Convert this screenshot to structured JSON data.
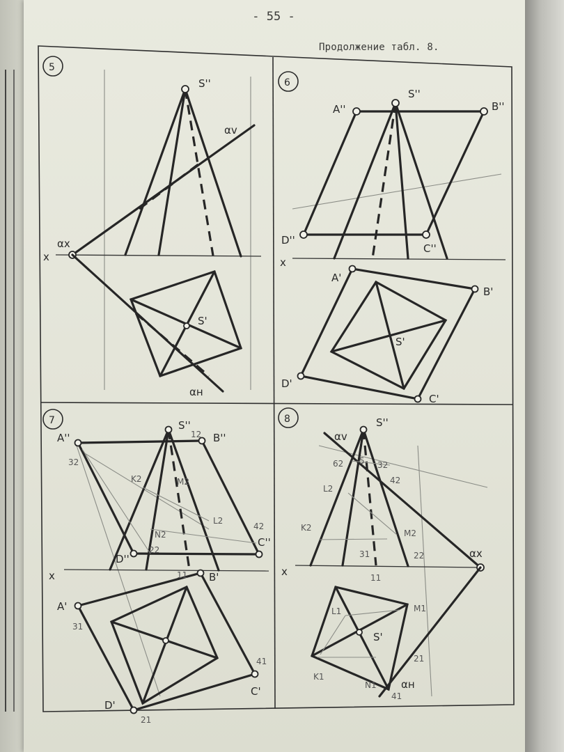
{
  "header": {
    "page_number": "- 55 -",
    "caption": "Продолжение табл. 8."
  },
  "panel5": {
    "number": "5",
    "labels": {
      "apex_v": "S''",
      "trace_v": "αv",
      "vanish": "αx",
      "axis": "x",
      "apex_h": "S'",
      "trace_h": "αн"
    }
  },
  "panel6": {
    "number": "6",
    "labels": {
      "a_v": "A''",
      "s_v": "S''",
      "b_v": "B''",
      "d_v": "D''",
      "c_v": "C''",
      "axis": "x",
      "a_h": "A'",
      "b_h": "B'",
      "s_h": "S'",
      "d_h": "D'",
      "c_h": "C'"
    }
  },
  "panel7": {
    "number": "7",
    "labels": {
      "a_v": "A''",
      "s_v": "S''",
      "one_v": "12",
      "b_v": "B''",
      "three_v": "32",
      "k_v": "K2",
      "m_v": "M2",
      "l_v": "L2",
      "n_v": "N2",
      "four_v": "42",
      "two_v": "22",
      "c_v": "C''",
      "d_v": "D''",
      "axis": "x",
      "one_h": "11",
      "b_h": "B'",
      "a_h": "A'",
      "three_h": "31",
      "four_h": "41",
      "c_h": "C'",
      "d_h": "D'",
      "two_h": "21"
    }
  },
  "panel8": {
    "number": "8",
    "labels": {
      "trace_v": "αv",
      "s_v": "S''",
      "six_v": "62",
      "five_v": "5",
      "three_v": "32",
      "four_v": "42",
      "l_v": "L2",
      "k_v": "K2",
      "m_v": "M2",
      "three_b": "31",
      "two_v": "22",
      "vanish": "αx",
      "axis": "x",
      "one_h": "11",
      "l_h": "L1",
      "m_h": "M1",
      "s_h": "S'",
      "two_h": "21",
      "k_h": "K1",
      "n_h": "N1",
      "trace_h": "αн",
      "four_h": "41"
    }
  }
}
